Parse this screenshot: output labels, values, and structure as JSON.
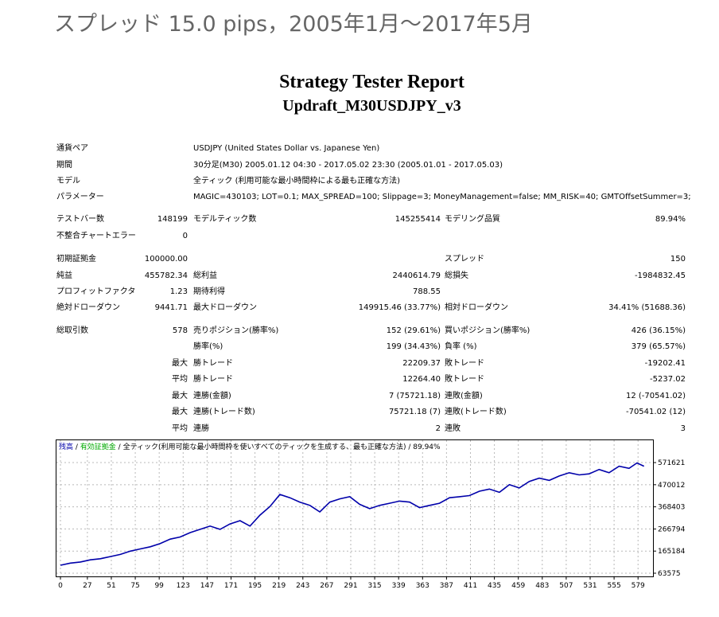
{
  "page_heading": "スプレッド 15.0 pips，2005年1月～2017年5月",
  "report": {
    "title": "Strategy Tester Report",
    "subtitle": "Updraft_M30USDJPY_v3"
  },
  "info": [
    {
      "label": "通貨ペア",
      "value": "USDJPY (United States Dollar vs. Japanese Yen)"
    },
    {
      "label": "期間",
      "value": "30分足(M30) 2005.01.12 04:30 - 2017.05.02 23:30 (2005.01.01 - 2017.05.03)"
    },
    {
      "label": "モデル",
      "value": "全ティック (利用可能な最小時間枠による最も正確な方法)"
    },
    {
      "label": "パラメーター",
      "value": "MAGIC=430103; LOT=0.1; MAX_SPREAD=100; Slippage=3; MoneyManagement=false; MM_RISK=40; GMTOffsetSummer=3;"
    }
  ],
  "stats": {
    "bars_label": "テストバー数",
    "bars": "148199",
    "ticks_label": "モデルティック数",
    "ticks": "145255414",
    "quality_label": "モデリング品質",
    "quality": "89.94%",
    "mismatch_label": "不整合チャートエラー",
    "mismatch": "0",
    "deposit_label": "初期証拠金",
    "deposit": "100000.00",
    "spread_label": "スプレッド",
    "spread": "150",
    "net_label": "純益",
    "net": "455782.34",
    "gross_profit_label": "総利益",
    "gross_profit": "2440614.79",
    "gross_loss_label": "総損失",
    "gross_loss": "-1984832.45",
    "pf_label": "プロフィットファクタ",
    "pf": "1.23",
    "exp_label": "期待利得",
    "exp": "788.55",
    "abs_dd_label": "絶対ドローダウン",
    "abs_dd": "9441.71",
    "max_dd_label": "最大ドローダウン",
    "max_dd": "149915.46 (33.77%)",
    "rel_dd_label": "相対ドローダウン",
    "rel_dd": "34.41% (51688.36)",
    "total_label": "総取引数",
    "total": "578",
    "short_label": "売りポジション(勝率%)",
    "short": "152 (29.61%)",
    "long_label": "買いポジション(勝率%)",
    "long": "426 (36.15%)",
    "winrate_label": "勝率(%)",
    "winrate": "199 (34.43%)",
    "lossrate_label": "負率 (%)",
    "lossrate": "379 (65.57%)",
    "max_word": "最大",
    "avg_word": "平均",
    "win_trade_label": "勝トレード",
    "loss_trade_label": "敗トレード",
    "largest_win": "22209.37",
    "largest_loss": "-19202.41",
    "avg_win": "12264.40",
    "avg_loss": "-5237.02",
    "consec_win_amt_label": "連勝(金額)",
    "consec_win_amt": "7 (75721.18)",
    "consec_loss_amt_label": "連敗(金額)",
    "consec_loss_amt": "12 (-70541.02)",
    "consec_win_cnt_label": "連勝(トレード数)",
    "consec_win_cnt": "75721.18 (7)",
    "consec_loss_cnt_label": "連敗(トレード数)",
    "consec_loss_cnt": "-70541.02 (12)",
    "avg_consec_win_label": "連勝",
    "avg_consec_win": "2",
    "avg_consec_loss_label": "連敗",
    "avg_consec_loss": "3"
  },
  "chart_data": {
    "type": "line",
    "legend": {
      "balance": "残高",
      "sep1": " / ",
      "equity": "有効証拠金",
      "sep2": " / ",
      "rest": "全ティック(利用可能な最小時間枠を使いすべてのティックを生成する、最も正確な方法) / 89.94%"
    },
    "x_ticks": [
      0,
      27,
      51,
      75,
      99,
      123,
      147,
      171,
      195,
      219,
      243,
      267,
      291,
      315,
      339,
      363,
      387,
      411,
      435,
      459,
      483,
      507,
      531,
      555,
      579
    ],
    "y_ticks": [
      63575,
      165184,
      266794,
      368403,
      470012,
      571621
    ],
    "xlim": [
      0,
      590
    ],
    "ylim": [
      63575,
      612000
    ],
    "grid": true,
    "colors": {
      "balance": "#0000aa",
      "equity": "#00bb00"
    },
    "series": [
      {
        "name": "残高",
        "x": [
          0,
          10,
          20,
          30,
          40,
          50,
          60,
          70,
          80,
          90,
          100,
          110,
          120,
          130,
          140,
          150,
          160,
          170,
          180,
          190,
          200,
          210,
          220,
          230,
          240,
          250,
          260,
          270,
          280,
          290,
          300,
          310,
          320,
          330,
          340,
          350,
          360,
          370,
          380,
          390,
          400,
          410,
          420,
          430,
          440,
          450,
          460,
          470,
          480,
          490,
          500,
          510,
          520,
          530,
          540,
          550,
          560,
          570,
          578,
          585
        ],
        "values": [
          100000,
          110000,
          115000,
          125000,
          130000,
          140000,
          150000,
          165000,
          175000,
          185000,
          200000,
          220000,
          230000,
          250000,
          265000,
          280000,
          265000,
          290000,
          305000,
          280000,
          330000,
          370000,
          425000,
          410000,
          390000,
          375000,
          345000,
          390000,
          405000,
          415000,
          380000,
          360000,
          375000,
          385000,
          395000,
          390000,
          365000,
          375000,
          385000,
          410000,
          415000,
          420000,
          440000,
          450000,
          435000,
          470000,
          455000,
          485000,
          500000,
          490000,
          510000,
          525000,
          515000,
          520000,
          540000,
          525000,
          555000,
          545000,
          570000,
          555000
        ]
      }
    ]
  }
}
